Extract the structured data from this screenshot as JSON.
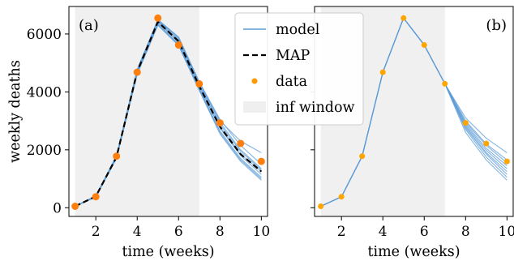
{
  "chart_data": [
    {
      "panel_label": "(a)",
      "type": "line",
      "xlabel": "time (weeks)",
      "ylabel": "weekly deaths",
      "xlim": [
        0.7,
        10.3
      ],
      "ylim": [
        -300,
        6950
      ],
      "xticks": [
        2,
        4,
        6,
        8,
        10
      ],
      "yticks": [
        0,
        2000,
        4000,
        6000
      ],
      "inf_window": [
        1,
        7
      ],
      "data": {
        "x": [
          1,
          2,
          3,
          4,
          5,
          6,
          7,
          8,
          9,
          10
        ],
        "y": [
          50,
          380,
          1780,
          4680,
          6550,
          5620,
          4280,
          2930,
          2220,
          1600
        ]
      },
      "map": {
        "x": [
          1,
          2,
          3,
          4,
          5,
          6,
          7,
          8,
          9,
          10
        ],
        "y": [
          50,
          390,
          1750,
          4700,
          6420,
          5750,
          4200,
          2800,
          1850,
          1250
        ]
      },
      "model": {
        "x": [
          1,
          2,
          3,
          4,
          5,
          6,
          7,
          8,
          9,
          10
        ],
        "runs": [
          [
            50,
            390,
            1750,
            4700,
            6420,
            5750,
            4200,
            2800,
            1850,
            1250
          ],
          [
            50,
            380,
            1720,
            4650,
            6350,
            5650,
            4100,
            2650,
            1700,
            1050
          ],
          [
            50,
            400,
            1780,
            4750,
            6480,
            5850,
            4300,
            2950,
            2000,
            1350
          ],
          [
            50,
            370,
            1700,
            4600,
            6300,
            5600,
            4050,
            2550,
            1600,
            950
          ],
          [
            50,
            410,
            1800,
            4780,
            6500,
            5900,
            4350,
            3050,
            2150,
            1500
          ],
          [
            50,
            385,
            1740,
            4680,
            6400,
            5700,
            4150,
            2750,
            1800,
            1150
          ],
          [
            50,
            395,
            1760,
            4720,
            6450,
            5800,
            4250,
            2880,
            1950,
            1300
          ],
          [
            50,
            375,
            1710,
            4630,
            6330,
            5620,
            4080,
            2600,
            1650,
            1000
          ],
          [
            50,
            405,
            1790,
            4760,
            6470,
            5880,
            4320,
            3000,
            2300,
            1900
          ]
        ]
      }
    },
    {
      "panel_label": "(b)",
      "type": "line",
      "xlabel": "time (weeks)",
      "xlim": [
        0.7,
        10.3
      ],
      "ylim": [
        -300,
        6950
      ],
      "xticks": [
        2,
        4,
        6,
        8,
        10
      ],
      "inf_window": [
        1,
        7
      ],
      "data": {
        "x": [
          1,
          2,
          3,
          4,
          5,
          6,
          7,
          8,
          9,
          10
        ],
        "y": [
          50,
          380,
          1780,
          4680,
          6550,
          5620,
          4280,
          2930,
          2220,
          1600
        ]
      },
      "model": {
        "x": [
          1,
          2,
          3,
          4,
          5,
          6,
          7,
          8,
          9,
          10
        ],
        "runs": [
          [
            50,
            380,
            1780,
            4680,
            6550,
            5620,
            4280,
            2900,
            2050,
            1450
          ],
          [
            50,
            380,
            1780,
            4680,
            6550,
            5620,
            4280,
            2800,
            1900,
            1250
          ],
          [
            50,
            380,
            1780,
            4680,
            6550,
            5620,
            4280,
            2700,
            1750,
            1050
          ],
          [
            50,
            380,
            1780,
            4680,
            6550,
            5620,
            4280,
            2600,
            1650,
            950
          ],
          [
            50,
            380,
            1780,
            4680,
            6550,
            5620,
            4280,
            3000,
            2200,
            1650
          ],
          [
            50,
            380,
            1780,
            4680,
            6550,
            5620,
            4280,
            2850,
            1980,
            1350
          ],
          [
            50,
            380,
            1780,
            4680,
            6550,
            5620,
            4280,
            2750,
            1850,
            1150
          ],
          [
            50,
            380,
            1780,
            4680,
            6550,
            5620,
            4280,
            2950,
            2150,
            1550
          ],
          [
            50,
            380,
            1780,
            4680,
            6550,
            5620,
            4280,
            3100,
            2400,
            1900
          ]
        ]
      }
    }
  ],
  "legend": {
    "entries": [
      {
        "label": "model",
        "kind": "line",
        "color": "#5b9bd5"
      },
      {
        "label": "MAP",
        "kind": "dashed",
        "color": "#000000"
      },
      {
        "label": "data",
        "kind": "dot",
        "color": "#ff9900"
      },
      {
        "label": "inf window",
        "kind": "patch",
        "color": "#efefef"
      }
    ],
    "placement": "top-center"
  },
  "colors": {
    "model": "#5b9bd5",
    "map": "#000000",
    "data_a": "#ff7f0e",
    "data_b": "#ffa500",
    "window": "#f0f0f0"
  }
}
